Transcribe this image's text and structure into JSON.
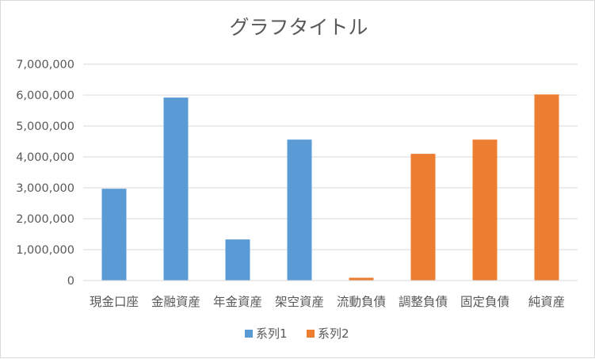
{
  "chart_data": {
    "type": "bar",
    "title": "グラフタイトル",
    "categories": [
      "現金口座",
      "金融資産",
      "年金資産",
      "架空資産",
      "流動負債",
      "調整負債",
      "固定負債",
      "純資産"
    ],
    "series": [
      {
        "name": "系列1",
        "color": "#5b9bd5",
        "values": [
          2970000,
          5920000,
          1330000,
          4560000,
          null,
          null,
          null,
          null
        ]
      },
      {
        "name": "系列2",
        "color": "#ed7d31",
        "values": [
          null,
          null,
          null,
          null,
          90000,
          4100000,
          4560000,
          6020000
        ]
      }
    ],
    "y_ticks": [
      "0",
      "1,000,000",
      "2,000,000",
      "3,000,000",
      "4,000,000",
      "5,000,000",
      "6,000,000",
      "7,000,000"
    ],
    "ylim": [
      0,
      7000000
    ],
    "grid": true,
    "legend_position": "bottom",
    "xlabel": "",
    "ylabel": ""
  }
}
